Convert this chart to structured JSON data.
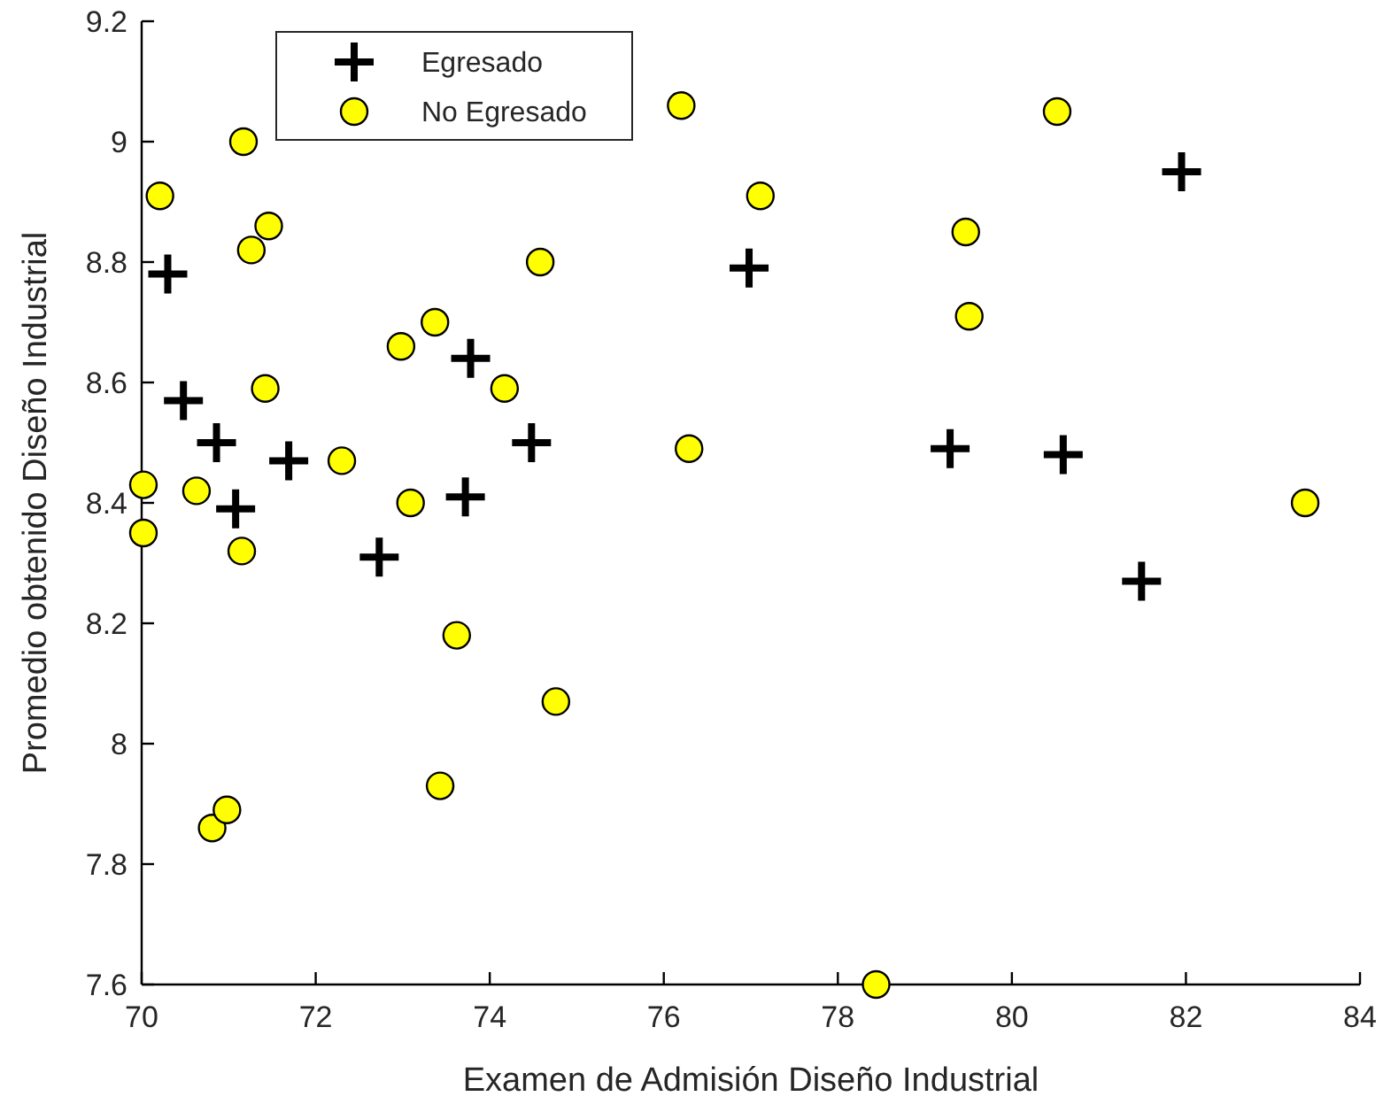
{
  "chart_data": {
    "type": "scatter",
    "xlabel": "Examen de Admisión Diseño Industrial",
    "ylabel": "Promedio obtenido Diseño Industrial",
    "xlim": [
      70,
      84
    ],
    "ylim": [
      7.6,
      9.2
    ],
    "xticks": [
      70,
      72,
      74,
      76,
      78,
      80,
      82,
      84
    ],
    "yticks": [
      7.6,
      7.8,
      8,
      8.2,
      8.4,
      8.6,
      8.8,
      9,
      9.2
    ],
    "grid": false,
    "legend": "top left",
    "series": [
      {
        "name": "Egresado",
        "color": "#000000",
        "marker": "cross",
        "x": [
          70.3,
          70.48,
          70.86,
          71.08,
          71.69,
          72.73,
          73.78,
          73.72,
          74.48,
          76.98,
          79.29,
          80.59,
          81.49,
          81.95
        ],
        "values": [
          8.78,
          8.57,
          8.5,
          8.39,
          8.47,
          8.31,
          8.64,
          8.41,
          8.5,
          8.79,
          8.49,
          8.48,
          8.27,
          8.95
        ]
      },
      {
        "name": "No Egresado",
        "color": "#ffff00",
        "marker": "circle",
        "x": [
          70.21,
          71.17,
          71.46,
          71.26,
          71.42,
          70.02,
          70.02,
          70.63,
          71.15,
          70.81,
          70.98,
          72.3,
          72.98,
          73.37,
          73.09,
          73.62,
          74.17,
          74.58,
          74.76,
          73.43,
          76.2,
          76.29,
          77.11,
          80.52,
          79.47,
          79.51,
          83.37,
          78.44
        ],
        "values": [
          8.91,
          9.0,
          8.86,
          8.82,
          8.59,
          8.43,
          8.35,
          8.42,
          8.32,
          7.86,
          7.89,
          8.47,
          8.66,
          8.7,
          8.4,
          8.18,
          8.59,
          8.8,
          8.07,
          7.93,
          9.06,
          8.49,
          8.91,
          9.05,
          8.85,
          8.71,
          8.4,
          7.6
        ]
      }
    ]
  }
}
